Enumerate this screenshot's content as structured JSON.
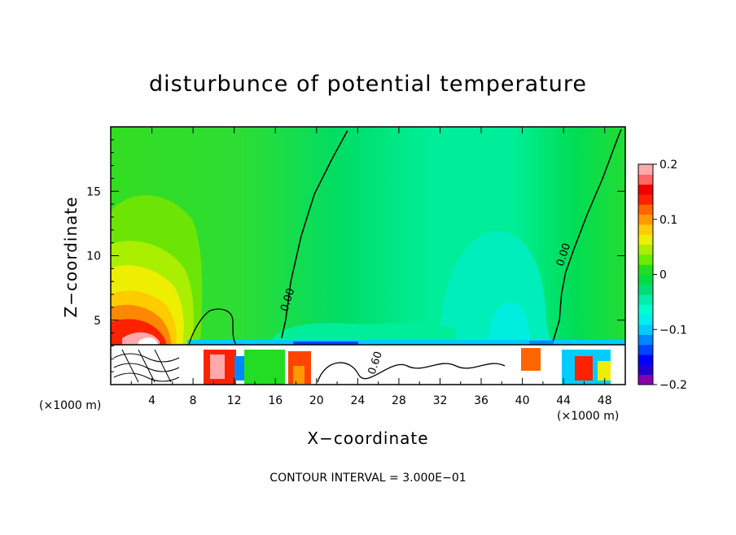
{
  "chart_data": {
    "type": "heatmap",
    "title": "disturbunce of potential temperature",
    "xlabel": "X−coordinate",
    "ylabel": "Z−coordinate",
    "x_unit": "(×1000 m)",
    "x_unit_right": "(×1000 m)",
    "xlim": [
      0,
      50
    ],
    "ylim": [
      0,
      20
    ],
    "x_ticks": [
      4,
      8,
      12,
      16,
      20,
      24,
      28,
      32,
      36,
      40,
      44,
      48
    ],
    "y_ticks": [
      5,
      10,
      15
    ],
    "x_tick_labels": [
      "4",
      "8",
      "12",
      "16",
      "20",
      "24",
      "28",
      "32",
      "36",
      "40",
      "44",
      "48"
    ],
    "y_tick_labels": [
      "5",
      "10",
      "15"
    ],
    "colorbar": {
      "min": -0.2,
      "max": 0.2,
      "tick_labels": [
        "0.2",
        "0.1",
        "0",
        "−0.1",
        "−0.2"
      ],
      "tick_values": [
        0.2,
        0.1,
        0,
        -0.1,
        -0.2
      ],
      "colors": [
        "#8800aa",
        "#2200cc",
        "#0000ff",
        "#0044ff",
        "#0088ff",
        "#00ccff",
        "#00eeee",
        "#00ffcc",
        "#00eeaa",
        "#00dd77",
        "#00dd44",
        "#22dd22",
        "#66ee00",
        "#aaee00",
        "#eeee00",
        "#ffcc00",
        "#ff9900",
        "#ff6600",
        "#ff2200",
        "#ee0000",
        "#ff6666",
        "#ffaaaa"
      ]
    },
    "contour_labels": [
      {
        "text": "0.00",
        "x": 17.5,
        "z": 6.5
      },
      {
        "text": "0.00",
        "x": 44.3,
        "z": 10.0
      },
      {
        "text": "0.60",
        "x": 26.0,
        "z": 1.6
      }
    ],
    "zero_contour_left": [
      [
        16.6,
        3.6
      ],
      [
        17.0,
        5.0
      ],
      [
        17.5,
        8.0
      ],
      [
        18.5,
        11.5
      ],
      [
        19.8,
        14.8
      ],
      [
        21.5,
        17.5
      ],
      [
        23.0,
        19.7
      ]
    ],
    "zero_contour_right": [
      [
        43.0,
        3.4
      ],
      [
        43.6,
        5.0
      ],
      [
        43.8,
        7.0
      ],
      [
        44.2,
        8.7
      ],
      [
        45.0,
        10.5
      ],
      [
        46.3,
        13.2
      ],
      [
        47.8,
        16.0
      ],
      [
        49.2,
        19.0
      ],
      [
        49.6,
        19.8
      ]
    ],
    "footer": "CONTOUR INTERVAL = 3.000E−01"
  }
}
